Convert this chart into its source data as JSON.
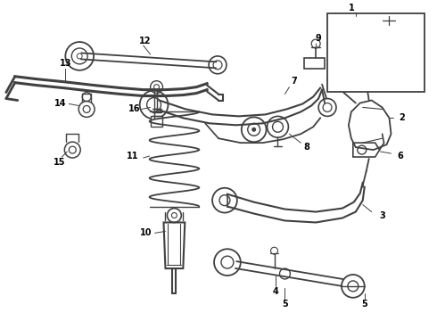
{
  "background_color": "#ffffff",
  "line_color": "#404040",
  "label_color": "#000000",
  "fig_width": 4.9,
  "fig_height": 3.6,
  "dpi": 100
}
